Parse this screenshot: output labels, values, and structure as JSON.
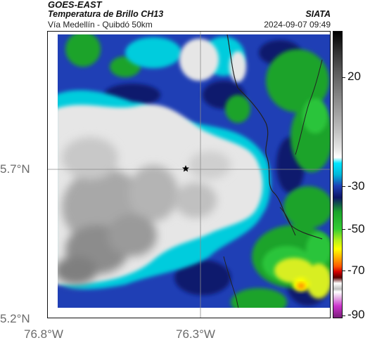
{
  "header": {
    "satellite": "GOES-EAST",
    "product": "Temperatura de Brillo CH13",
    "region": "Vía Medellín - Quibdó 50km",
    "agency": "SIATA",
    "timestamp": "2024-09-07 09:49"
  },
  "map": {
    "lat_labels": [
      "5.7°N",
      "5.2°N"
    ],
    "lon_labels": [
      "76.8°W",
      "76.3°W"
    ],
    "marker_icon": "star-icon"
  },
  "colorbar": {
    "labels": [
      "20",
      "-30",
      "-50",
      "-70",
      "-90"
    ],
    "unit_hint": "brightness temperature",
    "colors": {
      "gray_high": "#d9d9d9",
      "gray_mid": "#8c8c8c",
      "cyan": "#00ccdd",
      "blue": "#1f3fb5",
      "navy": "#0c1466",
      "green": "#1aa32a",
      "yellow": "#ffff00",
      "orange": "#ff8800",
      "red": "#d40000",
      "magenta": "#cc33cc"
    }
  }
}
